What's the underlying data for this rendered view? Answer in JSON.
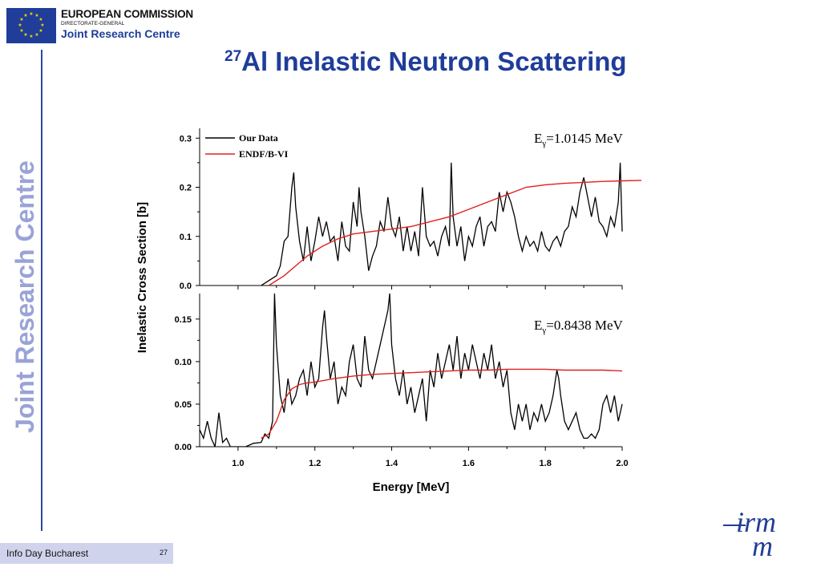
{
  "header": {
    "org_line1": "EUROPEAN COMMISSION",
    "org_line2": "DIRECTORATE-GENERAL",
    "org_line3": "Joint Research Centre",
    "side_text": "Joint Research Centre"
  },
  "slide": {
    "title_sup": "27",
    "title": "Al Inelastic Neutron Scattering"
  },
  "footer": {
    "event": "Info Day Bucharest",
    "page": "27"
  },
  "irmm_logo": "irmm",
  "colors": {
    "brand_blue": "#1f3d99",
    "our_data": "#000000",
    "endf": "#e02020",
    "footer_bg": "#d0d3ec"
  },
  "chart_data": [
    {
      "type": "line",
      "panel": "top",
      "annotation": "=1.0145 MeV",
      "annotation_prefix": "E",
      "annotation_sub": "γ",
      "xlim": [
        0.9,
        2.0
      ],
      "ylim": [
        0,
        0.32
      ],
      "yticks": [
        0.0,
        0.1,
        0.2,
        0.3
      ],
      "ytick_labels": [
        "0.0",
        "0.1",
        "0.2",
        "0.3"
      ],
      "legend": "top-left",
      "series": [
        {
          "name": "Our Data",
          "color": "#000000",
          "x": [
            1.06,
            1.08,
            1.1,
            1.11,
            1.12,
            1.13,
            1.14,
            1.145,
            1.15,
            1.16,
            1.17,
            1.18,
            1.19,
            1.2,
            1.21,
            1.22,
            1.23,
            1.24,
            1.25,
            1.26,
            1.27,
            1.28,
            1.29,
            1.3,
            1.31,
            1.315,
            1.32,
            1.33,
            1.34,
            1.35,
            1.36,
            1.37,
            1.38,
            1.39,
            1.4,
            1.41,
            1.42,
            1.43,
            1.44,
            1.45,
            1.46,
            1.47,
            1.48,
            1.49,
            1.5,
            1.51,
            1.52,
            1.53,
            1.54,
            1.55,
            1.555,
            1.56,
            1.57,
            1.58,
            1.59,
            1.6,
            1.61,
            1.62,
            1.63,
            1.64,
            1.65,
            1.66,
            1.67,
            1.68,
            1.69,
            1.7,
            1.71,
            1.72,
            1.73,
            1.74,
            1.75,
            1.76,
            1.77,
            1.78,
            1.79,
            1.8,
            1.81,
            1.82,
            1.83,
            1.84,
            1.85,
            1.86,
            1.87,
            1.88,
            1.89,
            1.9,
            1.91,
            1.92,
            1.93,
            1.94,
            1.95,
            1.96,
            1.97,
            1.98,
            1.99,
            1.995,
            2.0
          ],
          "y": [
            0.0,
            0.01,
            0.02,
            0.04,
            0.09,
            0.1,
            0.2,
            0.23,
            0.16,
            0.09,
            0.05,
            0.12,
            0.05,
            0.09,
            0.14,
            0.1,
            0.13,
            0.09,
            0.1,
            0.05,
            0.13,
            0.08,
            0.07,
            0.17,
            0.12,
            0.2,
            0.15,
            0.1,
            0.03,
            0.06,
            0.08,
            0.13,
            0.11,
            0.18,
            0.12,
            0.1,
            0.14,
            0.07,
            0.12,
            0.07,
            0.11,
            0.06,
            0.2,
            0.1,
            0.08,
            0.09,
            0.06,
            0.1,
            0.12,
            0.08,
            0.25,
            0.14,
            0.08,
            0.12,
            0.05,
            0.1,
            0.08,
            0.12,
            0.14,
            0.08,
            0.12,
            0.13,
            0.11,
            0.19,
            0.15,
            0.19,
            0.17,
            0.14,
            0.1,
            0.07,
            0.1,
            0.08,
            0.09,
            0.07,
            0.11,
            0.08,
            0.07,
            0.09,
            0.1,
            0.08,
            0.11,
            0.12,
            0.16,
            0.14,
            0.19,
            0.22,
            0.18,
            0.14,
            0.18,
            0.13,
            0.12,
            0.1,
            0.14,
            0.12,
            0.17,
            0.25,
            0.11
          ]
        },
        {
          "name": "ENDF/B-VI",
          "color": "#e02020",
          "x": [
            1.08,
            1.1,
            1.12,
            1.15,
            1.18,
            1.22,
            1.26,
            1.3,
            1.35,
            1.4,
            1.45,
            1.5,
            1.55,
            1.6,
            1.65,
            1.7,
            1.75,
            1.8,
            1.85,
            1.9,
            1.95,
            2.0,
            2.05
          ],
          "y": [
            0.0,
            0.01,
            0.02,
            0.04,
            0.06,
            0.08,
            0.095,
            0.105,
            0.11,
            0.115,
            0.12,
            0.13,
            0.14,
            0.155,
            0.17,
            0.185,
            0.2,
            0.205,
            0.208,
            0.21,
            0.212,
            0.213,
            0.214
          ]
        }
      ]
    },
    {
      "type": "line",
      "panel": "bottom",
      "annotation": "=0.8438 MeV",
      "annotation_prefix": "E",
      "annotation_sub": "γ",
      "xlabel": "Energy [MeV]",
      "ylabel": "Inelastic Cross Section [b]",
      "xlim": [
        0.9,
        2.0
      ],
      "ylim": [
        0,
        0.18
      ],
      "xticks": [
        1.0,
        1.2,
        1.4,
        1.6,
        1.8,
        2.0
      ],
      "xtick_labels": [
        "1.0",
        "1.2",
        "1.4",
        "1.6",
        "1.8",
        "2.0"
      ],
      "yticks": [
        0.0,
        0.05,
        0.1,
        0.15
      ],
      "ytick_labels": [
        "0.00",
        "0.05",
        "0.10",
        "0.15"
      ],
      "series": [
        {
          "name": "Our Data",
          "color": "#000000",
          "x": [
            0.9,
            0.91,
            0.92,
            0.93,
            0.94,
            0.95,
            0.96,
            0.97,
            0.98,
            1.0,
            1.02,
            1.04,
            1.06,
            1.07,
            1.08,
            1.09,
            1.095,
            1.1,
            1.11,
            1.12,
            1.13,
            1.14,
            1.15,
            1.16,
            1.17,
            1.18,
            1.19,
            1.2,
            1.21,
            1.22,
            1.225,
            1.23,
            1.24,
            1.25,
            1.26,
            1.27,
            1.28,
            1.29,
            1.3,
            1.31,
            1.32,
            1.33,
            1.34,
            1.35,
            1.36,
            1.37,
            1.38,
            1.39,
            1.395,
            1.4,
            1.41,
            1.42,
            1.43,
            1.44,
            1.45,
            1.46,
            1.47,
            1.48,
            1.49,
            1.5,
            1.51,
            1.52,
            1.53,
            1.54,
            1.55,
            1.56,
            1.57,
            1.58,
            1.59,
            1.6,
            1.61,
            1.62,
            1.63,
            1.64,
            1.65,
            1.66,
            1.67,
            1.68,
            1.69,
            1.7,
            1.71,
            1.72,
            1.73,
            1.74,
            1.75,
            1.76,
            1.77,
            1.78,
            1.79,
            1.8,
            1.81,
            1.82,
            1.83,
            1.835,
            1.84,
            1.85,
            1.86,
            1.87,
            1.88,
            1.89,
            1.9,
            1.91,
            1.92,
            1.93,
            1.94,
            1.95,
            1.96,
            1.97,
            1.98,
            1.99,
            2.0
          ],
          "y": [
            0.02,
            0.01,
            0.03,
            0.01,
            0.0,
            0.04,
            0.005,
            0.01,
            0.0,
            0.0,
            0.0,
            0.004,
            0.005,
            0.015,
            0.01,
            0.03,
            0.18,
            0.12,
            0.06,
            0.04,
            0.08,
            0.05,
            0.06,
            0.08,
            0.09,
            0.06,
            0.1,
            0.07,
            0.08,
            0.14,
            0.16,
            0.13,
            0.08,
            0.1,
            0.05,
            0.07,
            0.06,
            0.1,
            0.12,
            0.08,
            0.07,
            0.13,
            0.09,
            0.08,
            0.1,
            0.12,
            0.14,
            0.16,
            0.18,
            0.12,
            0.08,
            0.06,
            0.09,
            0.05,
            0.07,
            0.04,
            0.06,
            0.08,
            0.03,
            0.09,
            0.07,
            0.11,
            0.08,
            0.1,
            0.12,
            0.09,
            0.13,
            0.08,
            0.11,
            0.09,
            0.12,
            0.1,
            0.08,
            0.11,
            0.09,
            0.12,
            0.08,
            0.1,
            0.07,
            0.09,
            0.04,
            0.02,
            0.05,
            0.03,
            0.05,
            0.02,
            0.04,
            0.03,
            0.05,
            0.03,
            0.04,
            0.06,
            0.09,
            0.08,
            0.06,
            0.03,
            0.02,
            0.03,
            0.04,
            0.02,
            0.01,
            0.01,
            0.015,
            0.01,
            0.02,
            0.05,
            0.06,
            0.04,
            0.06,
            0.03,
            0.05
          ]
        },
        {
          "name": "ENDF/B-VI",
          "color": "#e02020",
          "x": [
            1.06,
            1.08,
            1.1,
            1.12,
            1.14,
            1.16,
            1.18,
            1.2,
            1.25,
            1.3,
            1.35,
            1.4,
            1.45,
            1.5,
            1.55,
            1.6,
            1.65,
            1.7,
            1.75,
            1.8,
            1.85,
            1.9,
            1.95,
            2.0
          ],
          "y": [
            0.01,
            0.015,
            0.03,
            0.055,
            0.068,
            0.073,
            0.075,
            0.076,
            0.08,
            0.083,
            0.085,
            0.086,
            0.087,
            0.088,
            0.089,
            0.09,
            0.09,
            0.091,
            0.091,
            0.091,
            0.09,
            0.09,
            0.09,
            0.089
          ]
        }
      ]
    }
  ]
}
